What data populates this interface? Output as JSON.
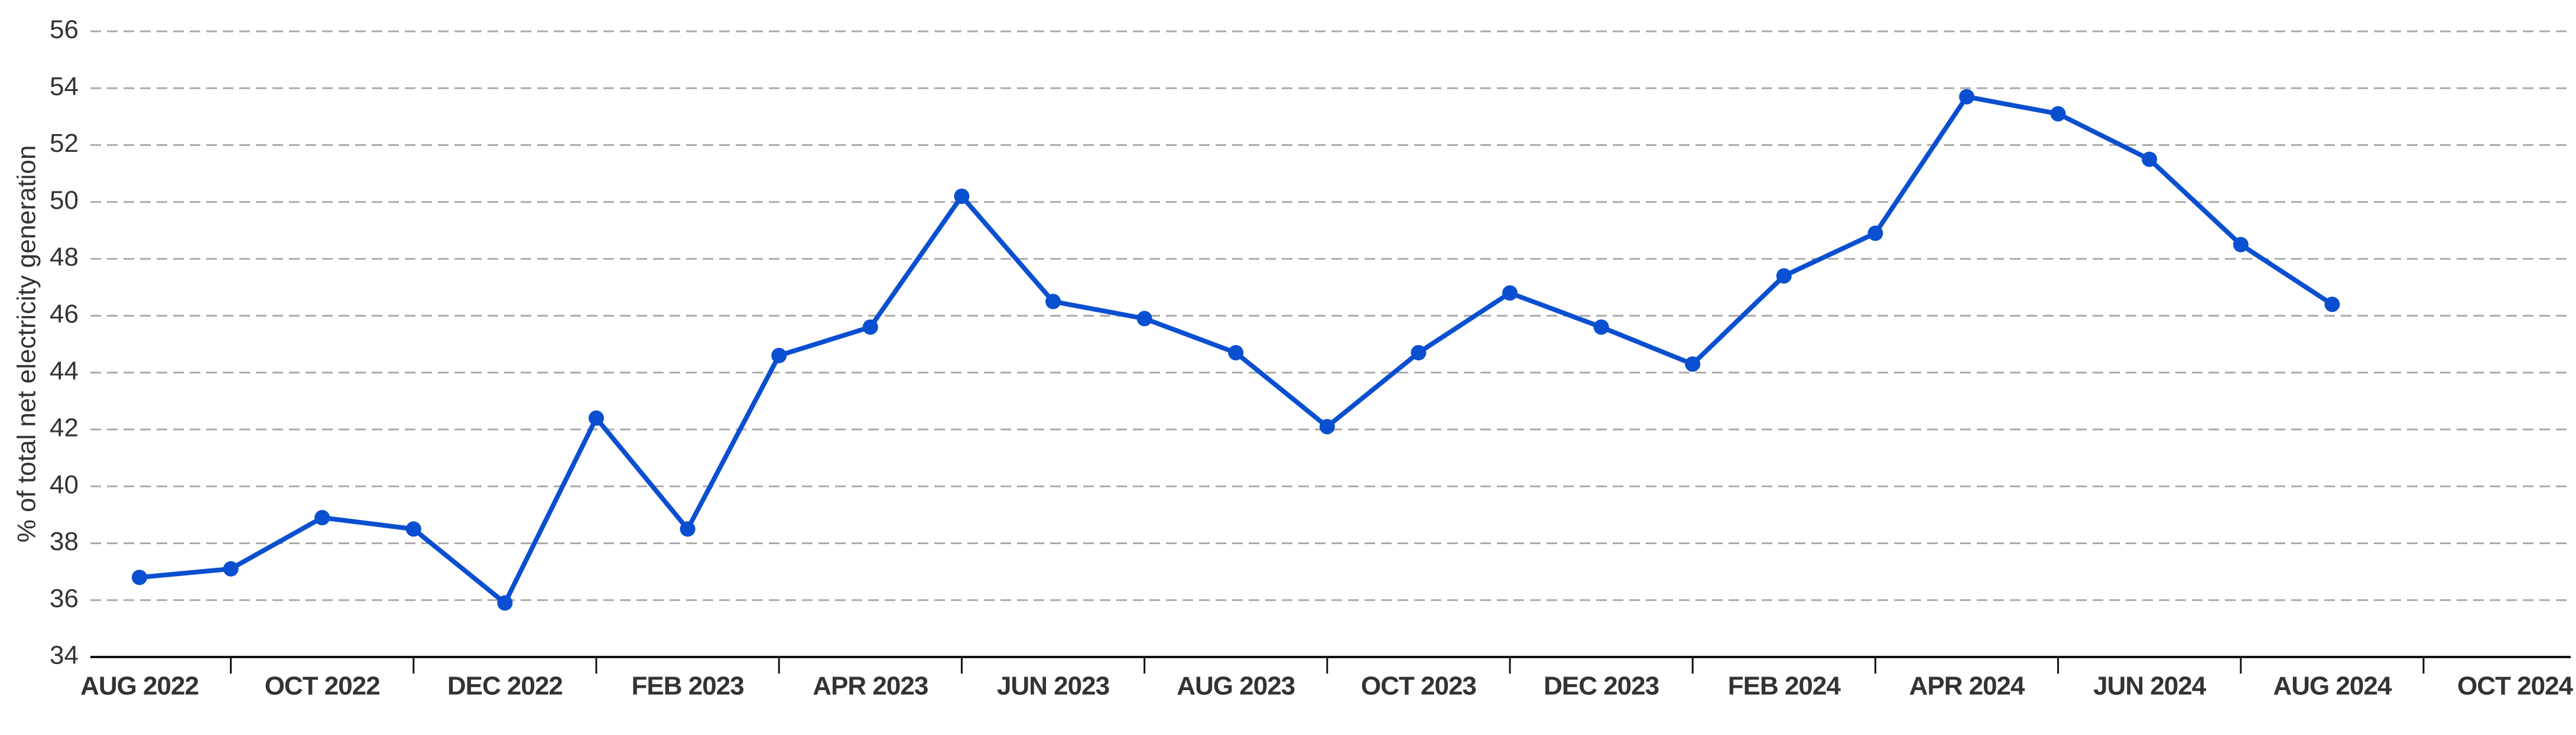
{
  "chart_data": {
    "type": "line",
    "ylabel": "% of total net electricity generation",
    "categories": [
      "AUG 2022",
      null,
      "OCT 2022",
      null,
      "DEC 2022",
      null,
      "FEB 2023",
      null,
      "APR 2023",
      null,
      "JUN 2023",
      null,
      "AUG 2023",
      null,
      "OCT 2023",
      null,
      "DEC 2023",
      null,
      "FEB 2024",
      null,
      "APR 2024",
      null,
      "JUN 2024",
      null,
      "AUG 2024",
      null,
      "OCT 2024"
    ],
    "series": [
      {
        "color": "#0a4fd0",
        "values": [
          36.8,
          37.1,
          38.9,
          38.5,
          35.9,
          42.4,
          38.5,
          44.6,
          45.6,
          50.2,
          46.5,
          45.9,
          44.7,
          42.1,
          44.7,
          46.8,
          45.6,
          44.3,
          47.4,
          48.9,
          53.7,
          53.1,
          51.5,
          48.5,
          46.4,
          null,
          null
        ]
      }
    ],
    "ylim": [
      34,
      56
    ],
    "yticks": [
      34,
      36,
      38,
      40,
      42,
      44,
      46,
      48,
      50,
      52,
      54,
      56
    ],
    "grid": true
  }
}
